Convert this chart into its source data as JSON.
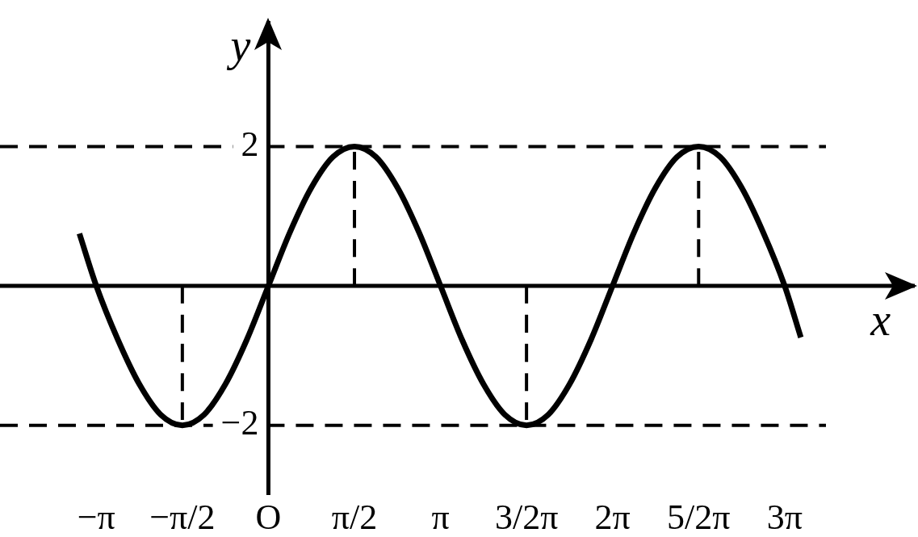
{
  "chart_data": {
    "type": "line",
    "xlabel": "x",
    "ylabel": "y",
    "xlim": [
      -4.9,
      11.8
    ],
    "ylim": [
      -3,
      3.8
    ],
    "xticks": [
      {
        "value": -3.142,
        "label": "−π"
      },
      {
        "value": -1.571,
        "label": "−π/2"
      },
      {
        "value": 0,
        "label": "O"
      },
      {
        "value": 1.571,
        "label": "π/2"
      },
      {
        "value": 3.142,
        "label": "π"
      },
      {
        "value": 4.712,
        "label": "3/2π"
      },
      {
        "value": 6.283,
        "label": "2π"
      },
      {
        "value": 7.854,
        "label": "5/2π"
      },
      {
        "value": 9.425,
        "label": "3π"
      }
    ],
    "yticks": [
      2,
      {
        "value": -2,
        "label": "−2"
      }
    ],
    "grid": "y",
    "legend": false,
    "marker": "none",
    "series": [
      {
        "color": "#000000",
        "line_style": "solid",
        "x": [
          -3.45,
          -3.142,
          -2.749,
          -2.356,
          -1.963,
          -1.571,
          -1.178,
          -0.785,
          -0.393,
          0,
          0.393,
          0.785,
          1.178,
          1.571,
          1.963,
          2.356,
          2.749,
          3.142,
          3.534,
          3.927,
          4.32,
          4.712,
          5.105,
          5.498,
          5.89,
          6.283,
          6.676,
          7.069,
          7.461,
          7.854,
          8.247,
          8.639,
          9.032,
          9.425,
          9.72
        ],
        "values": [
          0.75,
          0,
          -0.77,
          -1.41,
          -1.85,
          -2,
          -1.85,
          -1.41,
          -0.77,
          0,
          0.77,
          1.41,
          1.85,
          2,
          1.85,
          1.41,
          0.77,
          0,
          -0.77,
          -1.41,
          -1.85,
          -2,
          -1.85,
          -1.41,
          -0.77,
          0,
          0.77,
          1.41,
          1.85,
          2,
          1.85,
          1.41,
          0.77,
          0,
          -0.74
        ]
      },
      {
        "color": "#000000",
        "line_style": "dashed",
        "x": [
          -1.571,
          -1.571
        ],
        "values": [
          0,
          -2
        ]
      },
      {
        "color": "#000000",
        "line_style": "dashed",
        "x": [
          1.571,
          1.571
        ],
        "values": [
          0,
          2
        ]
      },
      {
        "color": "#000000",
        "line_style": "dashed",
        "x": [
          4.712,
          4.712
        ],
        "values": [
          0,
          -2
        ]
      },
      {
        "color": "#000000",
        "line_style": "dashed",
        "x": [
          7.854,
          7.854
        ],
        "values": [
          0,
          2
        ]
      }
    ]
  }
}
